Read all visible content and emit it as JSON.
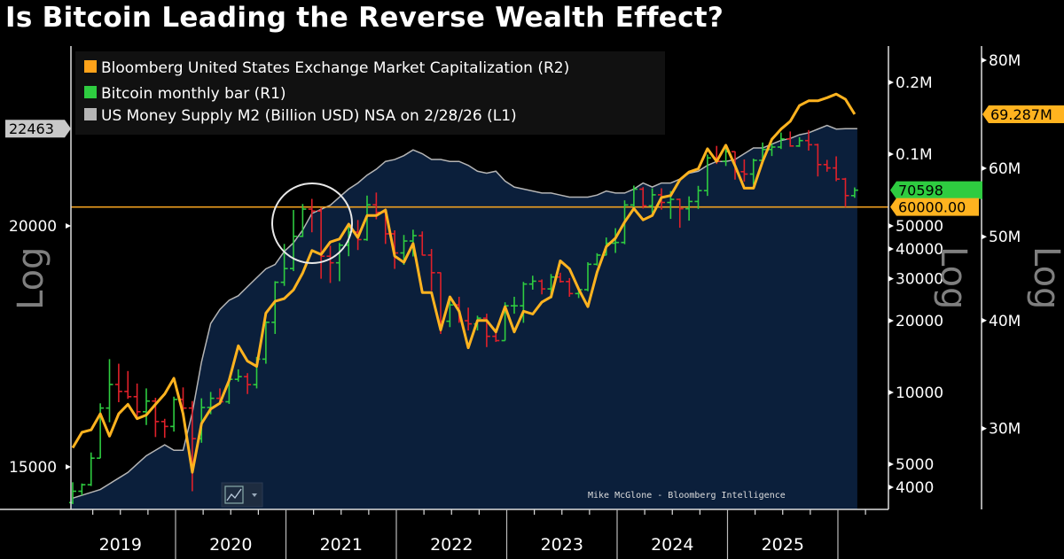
{
  "title": "Is Bitcoin Leading the Reverse Wealth Effect?",
  "colors": {
    "market_cap": "#ffb31f",
    "bitcoin_up": "#2ecc40",
    "bitcoin_down": "#e0202a",
    "m2": "#b5b5b5",
    "area": "#0b1f3b",
    "threshold": "#f0a020"
  },
  "chart_data": {
    "type": "line+ohlc+area",
    "title": "Is Bitcoin Leading the Reverse Wealth Effect?",
    "x_frequency": "monthly",
    "x_start": "2019-02",
    "x_end": "2026-03",
    "x_tick_labels": [
      "2019",
      "2020",
      "2021",
      "2022",
      "2023",
      "2024",
      "2025"
    ],
    "legend": {
      "placement": "top-left",
      "entries": [
        {
          "label": "Bloomberg United States Exchange Market Capitalization (R2)",
          "color": "#ffa31a"
        },
        {
          "label": "Bitcoin monthly bar (R1)",
          "color": "#2ecc40"
        },
        {
          "label": "US Money Supply M2 (Billion USD) NSA on 2/28/26 (L1)",
          "color": "#b5b5b5"
        }
      ]
    },
    "axes": {
      "L1": {
        "scale": "log",
        "label": "Log",
        "ticks": [
          {
            "v": 20000,
            "label": "20000"
          },
          {
            "v": 15000,
            "label": "15000"
          }
        ],
        "last_value_label": "22463",
        "last_value": 22463
      },
      "R1": {
        "scale": "log",
        "label": "Log",
        "ticks": [
          {
            "v": 200000,
            "label": "0.2M"
          },
          {
            "v": 100000,
            "label": "0.1M"
          },
          {
            "v": 50000,
            "label": "50000"
          },
          {
            "v": 40000,
            "label": "40000"
          },
          {
            "v": 30000,
            "label": "30000"
          },
          {
            "v": 20000,
            "label": "20000"
          },
          {
            "v": 10000,
            "label": "10000"
          },
          {
            "v": 5000,
            "label": "5000"
          },
          {
            "v": 4000,
            "label": "4000"
          }
        ],
        "last_value_label": "70598",
        "last_value": 70598,
        "threshold_label": "60000.00",
        "threshold": 60000
      },
      "R2": {
        "scale": "log",
        "label": "Log",
        "ticks": [
          {
            "v": 80,
            "label": "80M"
          },
          {
            "v": 60,
            "label": "60M"
          },
          {
            "v": 50,
            "label": "50M"
          },
          {
            "v": 40,
            "label": "40M"
          },
          {
            "v": 30,
            "label": "30M"
          }
        ],
        "last_value_label": "69.287M",
        "last_value": 69.287
      }
    },
    "series": {
      "market_cap_millions": [
        28.5,
        29.7,
        29.9,
        31.2,
        29.4,
        31.2,
        32.0,
        30.8,
        31.1,
        32.0,
        32.9,
        34.3,
        31.2,
        26.7,
        30.4,
        31.6,
        32.1,
        34.1,
        37.4,
        35.9,
        35.4,
        40.8,
        42.1,
        42.4,
        43.4,
        45.4,
        48.2,
        47.7,
        49.3,
        49.7,
        51.7,
        49.9,
        52.9,
        52.9,
        53.7,
        47.5,
        46.7,
        49.1,
        43.1,
        43.1,
        39.0,
        42.6,
        41.0,
        37.2,
        40.0,
        40.0,
        38.8,
        41.5,
        38.8,
        41.0,
        40.7,
        42.0,
        42.6,
        46.9,
        45.9,
        43.5,
        41.5,
        45.5,
        48.7,
        49.8,
        52.0,
        53.9,
        52.3,
        52.9,
        55.5,
        55.8,
        58.2,
        59.4,
        59.9,
        63.2,
        61.1,
        63.8,
        60.4,
        56.9,
        56.9,
        61.1,
        64.8,
        66.6,
        68.0,
        70.9,
        71.8,
        71.8,
        72.4,
        73.1,
        72.1,
        69.287
      ],
      "m2_billions": [
        14450,
        14500,
        14550,
        14600,
        14700,
        14800,
        14900,
        15050,
        15200,
        15300,
        15400,
        15300,
        15300,
        16000,
        17000,
        17800,
        18100,
        18300,
        18400,
        18600,
        18800,
        19000,
        19100,
        19400,
        19600,
        19900,
        20300,
        20400,
        20500,
        20700,
        20900,
        21050,
        21250,
        21400,
        21600,
        21650,
        21750,
        21900,
        21800,
        21650,
        21650,
        21600,
        21600,
        21500,
        21350,
        21300,
        21350,
        21100,
        20950,
        20900,
        20850,
        20800,
        20800,
        20750,
        20700,
        20700,
        20700,
        20750,
        20850,
        20800,
        20800,
        20900,
        21050,
        20950,
        21050,
        21050,
        21150,
        21300,
        21350,
        21500,
        21600,
        21600,
        21650,
        21800,
        21950,
        21950,
        22050,
        22150,
        22200,
        22300,
        22350,
        22450,
        22550,
        22450,
        22463
      ],
      "bitcoin_ohlc": [
        [
          3450,
          4200,
          3400,
          3850
        ],
        [
          3850,
          4150,
          3700,
          4100
        ],
        [
          4100,
          5600,
          4050,
          5300
        ],
        [
          5300,
          9000,
          5300,
          8600
        ],
        [
          8600,
          13800,
          7500,
          10800
        ],
        [
          10800,
          13200,
          9100,
          10100
        ],
        [
          10100,
          12300,
          9400,
          9600
        ],
        [
          9600,
          10900,
          7800,
          8300
        ],
        [
          8300,
          10400,
          7300,
          9200
        ],
        [
          9200,
          9500,
          6500,
          7550
        ],
        [
          7550,
          7750,
          6450,
          7200
        ],
        [
          7200,
          9600,
          6850,
          9350
        ],
        [
          9350,
          10500,
          8400,
          8600
        ],
        [
          8600,
          9200,
          3850,
          6400
        ],
        [
          6400,
          9450,
          6150,
          8650
        ],
        [
          8650,
          10050,
          8100,
          9450
        ],
        [
          9450,
          10400,
          8900,
          9140
        ],
        [
          9140,
          11450,
          8950,
          11350
        ],
        [
          11350,
          12500,
          11100,
          11650
        ],
        [
          11650,
          12050,
          9850,
          10780
        ],
        [
          10780,
          14100,
          10400,
          13800
        ],
        [
          13800,
          19900,
          13200,
          19700
        ],
        [
          19700,
          29300,
          17600,
          29000
        ],
        [
          29000,
          42000,
          28000,
          33100
        ],
        [
          33100,
          58300,
          32300,
          45200
        ],
        [
          45200,
          61800,
          44900,
          58800
        ],
        [
          58800,
          64900,
          47000,
          57700
        ],
        [
          57700,
          59600,
          30000,
          37300
        ],
        [
          37300,
          41300,
          28800,
          35000
        ],
        [
          35000,
          42400,
          29300,
          41500
        ],
        [
          41500,
          50500,
          37300,
          47100
        ],
        [
          47100,
          52900,
          39600,
          43800
        ],
        [
          43800,
          67000,
          43300,
          61300
        ],
        [
          61300,
          69000,
          53300,
          57000
        ],
        [
          57000,
          59100,
          42000,
          46300
        ],
        [
          46300,
          47900,
          33000,
          38500
        ],
        [
          38500,
          45800,
          34300,
          43200
        ],
        [
          43200,
          48200,
          37200,
          45500
        ],
        [
          45500,
          47400,
          37600,
          37700
        ],
        [
          37700,
          40000,
          26700,
          31800
        ],
        [
          31800,
          31900,
          17600,
          19900
        ],
        [
          19900,
          24600,
          18800,
          23300
        ],
        [
          23300,
          25200,
          19600,
          20000
        ],
        [
          20000,
          22700,
          18200,
          19400
        ],
        [
          19400,
          21000,
          18200,
          20500
        ],
        [
          20500,
          21400,
          15500,
          17200
        ],
        [
          17200,
          18400,
          16300,
          16500
        ],
        [
          16500,
          23900,
          16500,
          23100
        ],
        [
          23100,
          25200,
          21400,
          23100
        ],
        [
          23100,
          29100,
          19600,
          28500
        ],
        [
          28500,
          30900,
          27000,
          29300
        ],
        [
          29300,
          29800,
          25800,
          27200
        ],
        [
          27200,
          31400,
          24800,
          30500
        ],
        [
          30500,
          31800,
          28900,
          29200
        ],
        [
          29200,
          30200,
          25200,
          26000
        ],
        [
          26000,
          27400,
          24900,
          27000
        ],
        [
          27000,
          35200,
          26600,
          34500
        ],
        [
          34500,
          38400,
          34100,
          37700
        ],
        [
          37700,
          44700,
          37600,
          42300
        ],
        [
          42300,
          48900,
          38500,
          42600
        ],
        [
          42600,
          64000,
          41900,
          61200
        ],
        [
          61200,
          73800,
          59300,
          71300
        ],
        [
          71300,
          72700,
          59100,
          60700
        ],
        [
          60700,
          71900,
          56600,
          67500
        ],
        [
          67500,
          71900,
          58500,
          62700
        ],
        [
          62700,
          70000,
          53500,
          64600
        ],
        [
          64600,
          65100,
          49100,
          59000
        ],
        [
          59000,
          66500,
          52600,
          63300
        ],
        [
          63300,
          73600,
          58900,
          70300
        ],
        [
          70300,
          99600,
          66800,
          96400
        ],
        [
          96400,
          108300,
          90900,
          93400
        ],
        [
          93400,
          109600,
          89200,
          102400
        ],
        [
          102400,
          102700,
          78200,
          84400
        ],
        [
          84400,
          95000,
          76600,
          82500
        ],
        [
          82500,
          95700,
          74400,
          94200
        ],
        [
          94200,
          111900,
          93400,
          104600
        ],
        [
          104600,
          110500,
          98200,
          107100
        ],
        [
          107100,
          123200,
          105100,
          115800
        ],
        [
          115800,
          124500,
          107400,
          108200
        ],
        [
          108200,
          117900,
          107300,
          114000
        ],
        [
          114000,
          126200,
          103500,
          109500
        ],
        [
          109500,
          110600,
          80600,
          90400
        ],
        [
          90400,
          94600,
          84400,
          87500
        ],
        [
          87500,
          97900,
          77000,
          78600
        ],
        [
          78600,
          79500,
          60000,
          67000
        ],
        [
          67000,
          72500,
          65600,
          70598
        ]
      ]
    },
    "annotation_circle": "around 2021 Bitcoin peak",
    "grid": false
  },
  "watermark": "Mike McGlone - Bloomberg Intelligence"
}
